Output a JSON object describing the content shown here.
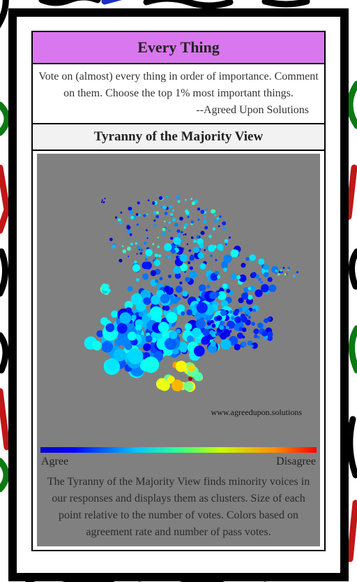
{
  "header": {
    "title": "Every Thing"
  },
  "intro": {
    "text_lines": [
      "Vote on (almost) every thing in order of importance. Comment",
      "on them. Choose the top 1% most important things."
    ],
    "attribution": "--Agreed Upon Solutions"
  },
  "view": {
    "title": "Tyranny of the Majority View",
    "watermark": "www.agreedupon.solutions",
    "legend": {
      "low": "Agree",
      "high": "Disagree"
    },
    "description_lines": [
      "The Tyranny of the Majority View finds minority voices in",
      "our responses and displays them as clusters. Size of each",
      "point relative to the number of votes. Colors based on",
      "agreement rate and number of pass votes."
    ]
  }
}
